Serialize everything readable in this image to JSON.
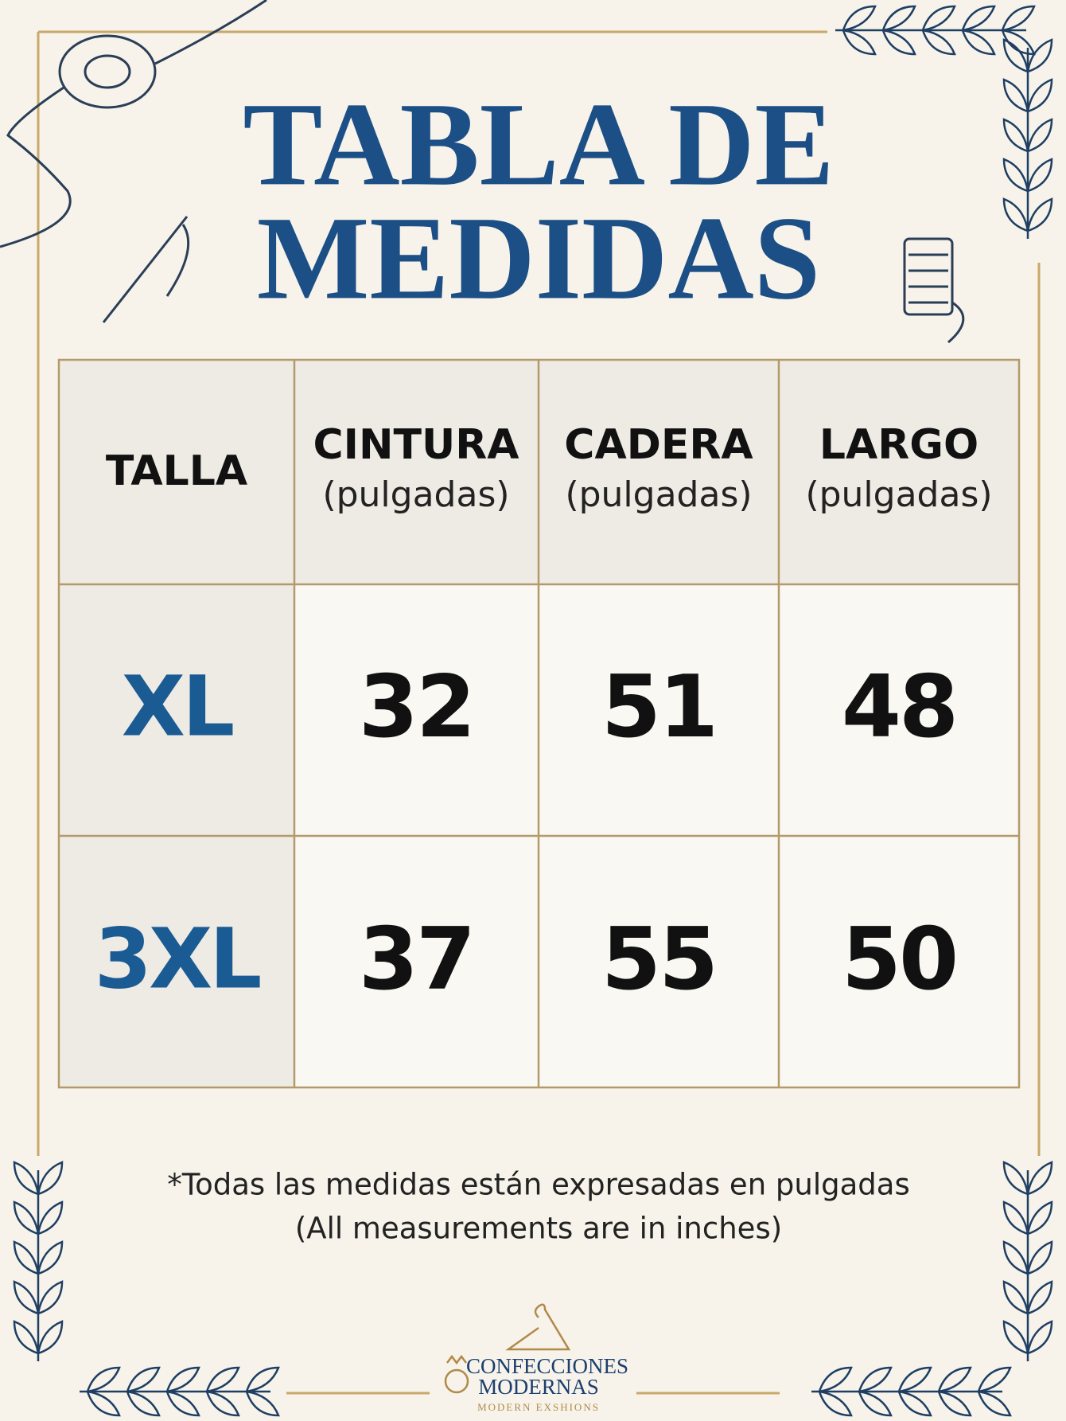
{
  "header": {
    "title_line1": "TABLA DE",
    "title_line2": "MEDIDAS"
  },
  "table": {
    "columns": [
      {
        "name": "TALLA"
      },
      {
        "name": "CINTURA",
        "unit": "(pulgadas)"
      },
      {
        "name": "CADERA",
        "unit": "(pulgadas)"
      },
      {
        "name": "LARGO",
        "unit": "(pulgadas)"
      }
    ],
    "rows": [
      [
        "XL",
        32,
        51,
        48
      ],
      [
        "3XL",
        37,
        55,
        50
      ]
    ]
  },
  "footnote": {
    "line1": "*Todas las medidas están expresadas en pulgadas",
    "line2": "(All measurements are in inches)"
  },
  "brand": {
    "name_line1": "CONFECCIONES",
    "name_line2": "MODERNAS",
    "tagline": "MODERN EXSHIONS"
  }
}
